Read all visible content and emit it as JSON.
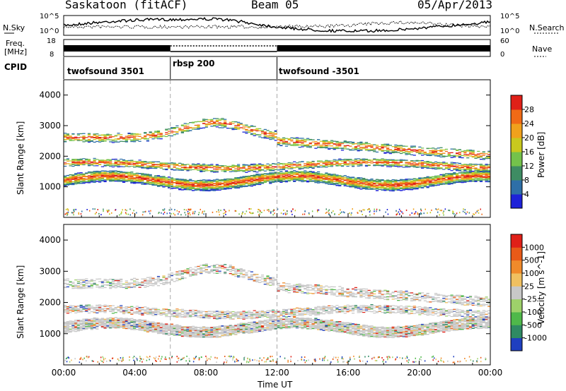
{
  "header": {
    "title": "Saskatoon (fitACF)",
    "beam": "Beam 05",
    "date": "05/Apr/2013"
  },
  "top_panels": {
    "nsky_label": "N.Sky",
    "nsearch_label": "N.Search",
    "nsky_ticks": [
      "10^5",
      "10^0"
    ],
    "nsearch_ticks": [
      "10^5",
      "10^0"
    ],
    "freq_label_1": "Freq.",
    "freq_label_2": "[MHz]",
    "freq_ticks": [
      "18",
      "8"
    ],
    "nave_label": "Nave",
    "nave_ticks": [
      "60",
      "0"
    ],
    "cpid_label": "CPID",
    "modes": [
      {
        "label": "twofsound 3501",
        "start_hour": 0
      },
      {
        "label": "rbsp 200",
        "start_hour": 6
      },
      {
        "label": "twofsound -3501",
        "start_hour": 12
      }
    ]
  },
  "chart_data": [
    {
      "type": "heatmap",
      "name": "power",
      "ylabel": "Slant Range [km]",
      "ylim": [
        0,
        4500
      ],
      "yticks": [
        "1000",
        "2000",
        "3000",
        "4000"
      ],
      "colorbar_label": "Power [dB]",
      "colorbar_ticks": [
        "4",
        "8",
        "12",
        "16",
        "20",
        "24",
        "28"
      ],
      "colors": [
        "#1e22d8",
        "#2e6fa8",
        "#3e8c63",
        "#74c24b",
        "#c8c81e",
        "#f0a11c",
        "#f06a16",
        "#e02018"
      ]
    },
    {
      "type": "heatmap",
      "name": "velocity",
      "ylabel": "Slant Range [km]",
      "ylim": [
        0,
        4500
      ],
      "yticks": [
        "1000",
        "2000",
        "3000",
        "4000"
      ],
      "colorbar_label": "Velocity [m s^-1]",
      "colorbar_ticks": [
        "1000",
        "500",
        "100",
        "25",
        "-25",
        "-100",
        "-500",
        "-1000"
      ],
      "colors": [
        "#1f3fc0",
        "#2f8a63",
        "#4fb84a",
        "#9ed16a",
        "#c8c8c8",
        "#f0c060",
        "#f08a2a",
        "#e85a18",
        "#e02018"
      ]
    }
  ],
  "time_axis": {
    "label": "Time UT",
    "xlim": [
      0,
      24
    ],
    "ticks": [
      "00:00",
      "04:00",
      "08:00",
      "12:00",
      "16:00",
      "20:00",
      "00:00"
    ]
  }
}
